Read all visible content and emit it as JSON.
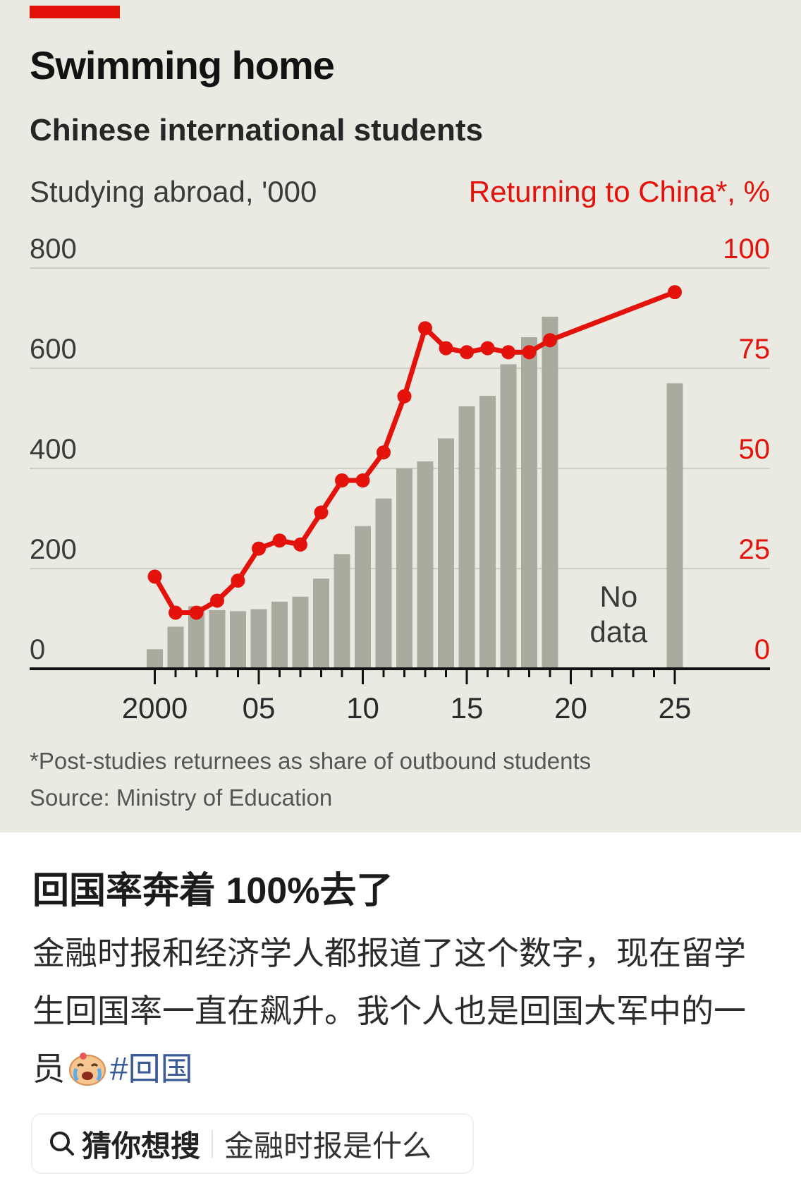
{
  "chart_data": {
    "type": "bar",
    "title": "Swimming home",
    "subtitle": "Chinese international students",
    "left_axis_label": "Studying abroad, '000",
    "right_axis_label": "Returning to China*, %",
    "left_ylim": [
      0,
      800
    ],
    "right_ylim": [
      0,
      100
    ],
    "left_ticks": [
      "800",
      "600",
      "400",
      "200",
      "0"
    ],
    "right_ticks": [
      "100",
      "75",
      "50",
      "25",
      "0"
    ],
    "x_tick_labels": [
      "2000",
      "05",
      "10",
      "15",
      "20",
      "25"
    ],
    "x_tick_years": [
      2000,
      2005,
      2010,
      2015,
      2020,
      2025
    ],
    "xlim": [
      1999,
      2026
    ],
    "grid": true,
    "annotation": "No data",
    "annotation_lines": [
      "No",
      "data"
    ],
    "bar_series": {
      "name": "Studying abroad, '000",
      "x": [
        2000,
        2001,
        2002,
        2003,
        2004,
        2005,
        2006,
        2007,
        2008,
        2009,
        2010,
        2011,
        2012,
        2013,
        2014,
        2015,
        2016,
        2017,
        2018,
        2019,
        2025
      ],
      "values": [
        39,
        84,
        125,
        117,
        115,
        119,
        134,
        144,
        180,
        229,
        285,
        340,
        400,
        414,
        460,
        524,
        545,
        608,
        662,
        703,
        570
      ]
    },
    "line_series": {
      "name": "Returning to China*, %",
      "x": [
        2000,
        2001,
        2002,
        2003,
        2004,
        2005,
        2006,
        2007,
        2008,
        2009,
        2010,
        2011,
        2012,
        2013,
        2014,
        2015,
        2016,
        2017,
        2018,
        2019,
        2025
      ],
      "values": [
        23,
        14,
        14,
        17,
        22,
        30,
        32,
        31,
        39,
        47,
        47,
        54,
        68,
        85,
        80,
        79,
        80,
        79,
        79,
        82,
        94
      ]
    },
    "footnote": "*Post-studies returnees as share of outbound students",
    "source": "Source: Ministry of Education"
  },
  "colors": {
    "background": "#ebeae2",
    "bars": "#aaab9f",
    "line": "#e3120b",
    "red_tab": "#e3120b",
    "grid": "#cfcec6",
    "axis": "#111111",
    "hashtag": "#3b5a98"
  },
  "post": {
    "title": "回国率奔着 100%去了",
    "body_text": "金融时报和经济学人都报道了这个数字，现在留学生回国率一直在飙升。我个人也是回国大军中的一员",
    "emoji_icon": "crying-face-icon",
    "hashtag": "#回国"
  },
  "search": {
    "icon": "search-icon",
    "label": "猜你想搜",
    "suggestion": "金融时报是什么"
  }
}
